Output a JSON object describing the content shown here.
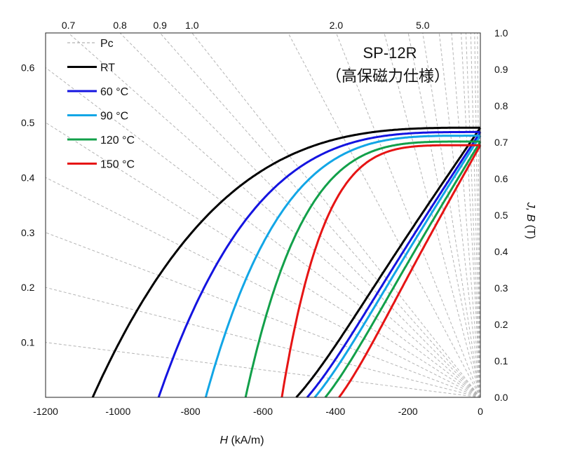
{
  "chart_data": {
    "type": "line",
    "title": "SP-12R",
    "subtitle": "（高保磁力仕様）",
    "xlabel_italic": "H",
    "xlabel_unit": " (kA/m)",
    "right_ylabel_italic": "J, B",
    "right_ylabel_unit": " (T)",
    "xlim": [
      -1200,
      0
    ],
    "right_ylim": [
      0,
      1.0
    ],
    "x_ticks": [
      -1200,
      -1000,
      -800,
      -600,
      -400,
      -200,
      0
    ],
    "x_tick_labels": [
      "-1200",
      "-1000",
      "-800",
      "-600",
      "-400",
      "-200",
      "0"
    ],
    "right_y_ticks": [
      0.0,
      0.1,
      0.2,
      0.3,
      0.4,
      0.5,
      0.6,
      0.7,
      0.8,
      0.9,
      1.0
    ],
    "right_y_tick_labels": [
      "0.0",
      "0.1",
      "0.2",
      "0.3",
      "0.4",
      "0.5",
      "0.6",
      "0.7",
      "0.8",
      "0.9",
      "1.0"
    ],
    "left_y_ticks": [
      0.1,
      0.2,
      0.3,
      0.4,
      0.5,
      0.6
    ],
    "left_y_tick_labels": [
      "0.1",
      "0.2",
      "0.3",
      "0.4",
      "0.5",
      "0.6"
    ],
    "pc_slopes_left": [
      0.1,
      0.2,
      0.3,
      0.4,
      0.5,
      0.6
    ],
    "pc_slopes_top": [
      0.7,
      0.8,
      0.9,
      1.0,
      2.0,
      5.0
    ],
    "pc_top_labels": [
      "0.7",
      "0.8",
      "0.9",
      "1.0",
      "2.0",
      "5.0"
    ],
    "pc_extra_slopes": [
      1.5,
      3.0,
      4.0,
      7.0,
      10.0,
      15.0,
      20.0,
      30.0,
      50.0,
      100.0
    ],
    "pc_line_color": "#b4b4b4",
    "legend": [
      {
        "label": "Pc",
        "color": "#a0a0a0",
        "dashed": true
      },
      {
        "label": "RT",
        "color": "#000000",
        "dashed": false
      },
      {
        "label": "60 °C",
        "color": "#1414e0",
        "dashed": false
      },
      {
        "label": "90 °C",
        "color": "#12a6e6",
        "dashed": false
      },
      {
        "label": "120 °C",
        "color": "#12a04a",
        "dashed": false
      },
      {
        "label": "150 °C",
        "color": "#e61414",
        "dashed": false
      }
    ],
    "series": [
      {
        "name": "RT",
        "color": "#000000",
        "Br": 0.74,
        "HcJ": -1070,
        "HcB": -508,
        "k": 3.2
      },
      {
        "name": "60 °C",
        "color": "#1414e0",
        "Br": 0.728,
        "HcJ": -888,
        "HcB": -478,
        "k": 3.5
      },
      {
        "name": "90 °C",
        "color": "#12a6e6",
        "Br": 0.718,
        "HcJ": -758,
        "HcB": -457,
        "k": 3.8
      },
      {
        "name": "120 °C",
        "color": "#12a04a",
        "Br": 0.702,
        "HcJ": -648,
        "HcB": -428,
        "k": 4.2
      },
      {
        "name": "150 °C",
        "color": "#e61414",
        "Br": 0.692,
        "HcJ": -548,
        "HcB": -390,
        "k": 4.8
      }
    ]
  }
}
